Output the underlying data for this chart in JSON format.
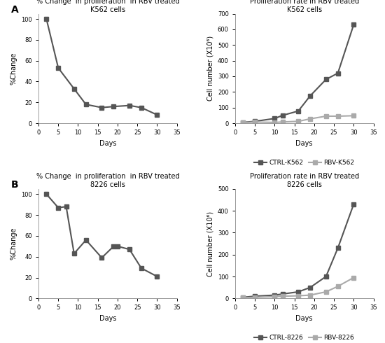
{
  "panel_A_left": {
    "title": "% Change  in proliferation  in RBV treated\nK562 cells",
    "xlabel": "Days",
    "ylabel": "%Change",
    "days": [
      2,
      5,
      9,
      12,
      16,
      19,
      23,
      26,
      30
    ],
    "values": [
      100,
      53,
      33,
      18,
      15,
      16,
      17,
      15,
      8
    ],
    "xlim": [
      0,
      35
    ],
    "ylim": [
      0,
      105
    ],
    "yticks": [
      0,
      20,
      40,
      60,
      80,
      100
    ],
    "xticks": [
      0,
      5,
      10,
      15,
      20,
      25,
      30,
      35
    ]
  },
  "panel_A_right": {
    "title": "Proliferation rate in RBV treated\nK562 cells",
    "xlabel": "Days",
    "ylabel": "Cell number (X10⁶)",
    "ctrl_days": [
      2,
      5,
      10,
      12,
      16,
      19,
      23,
      26,
      30
    ],
    "ctrl_values": [
      5,
      12,
      30,
      50,
      78,
      175,
      280,
      320,
      630
    ],
    "rbv_days": [
      2,
      5,
      10,
      12,
      16,
      19,
      23,
      26,
      30
    ],
    "rbv_values": [
      3,
      8,
      5,
      8,
      12,
      28,
      45,
      45,
      48
    ],
    "xlim": [
      0,
      35
    ],
    "ylim": [
      0,
      700
    ],
    "yticks": [
      0,
      100,
      200,
      300,
      400,
      500,
      600,
      700
    ],
    "xticks": [
      0,
      5,
      10,
      15,
      20,
      25,
      30,
      35
    ],
    "ctrl_label": "CTRL-K562",
    "rbv_label": "RBV-K562",
    "ctrl_color": "#555555",
    "rbv_color": "#aaaaaa"
  },
  "panel_B_left": {
    "title": "% Change  in proliferation  in RBV treated\n8226 cells",
    "xlabel": "Days",
    "ylabel": "%Change",
    "days": [
      2,
      5,
      7,
      9,
      12,
      16,
      19,
      20,
      23,
      26,
      30
    ],
    "values": [
      100,
      87,
      88,
      43,
      56,
      39,
      50,
      50,
      47,
      29,
      21
    ],
    "xlim": [
      0,
      35
    ],
    "ylim": [
      0,
      105
    ],
    "yticks": [
      0,
      20,
      40,
      60,
      80,
      100
    ],
    "xticks": [
      0,
      5,
      10,
      15,
      20,
      25,
      30,
      35
    ]
  },
  "panel_B_right": {
    "title": "Proliferation rate in RBV treated\n8226 cells",
    "xlabel": "Days",
    "ylabel": "Cell number (X10⁶)",
    "ctrl_days": [
      2,
      5,
      10,
      12,
      16,
      19,
      23,
      26,
      30
    ],
    "ctrl_values": [
      5,
      10,
      15,
      20,
      30,
      50,
      100,
      230,
      430
    ],
    "rbv_days": [
      2,
      5,
      10,
      12,
      16,
      19,
      23,
      26,
      30
    ],
    "rbv_values": [
      3,
      5,
      8,
      10,
      12,
      15,
      30,
      55,
      95
    ],
    "xlim": [
      0,
      35
    ],
    "ylim": [
      0,
      500
    ],
    "yticks": [
      0,
      100,
      200,
      300,
      400,
      500
    ],
    "xticks": [
      0,
      5,
      10,
      15,
      20,
      25,
      30,
      35
    ],
    "ctrl_label": "CTRL-8226",
    "rbv_label": "RBV-8226",
    "ctrl_color": "#555555",
    "rbv_color": "#aaaaaa"
  },
  "line_color": "#555555",
  "marker": "s",
  "markersize": 4,
  "linewidth": 1.5,
  "fontsize_title": 7,
  "fontsize_label": 7,
  "fontsize_tick": 6,
  "fontsize_legend": 6.5
}
